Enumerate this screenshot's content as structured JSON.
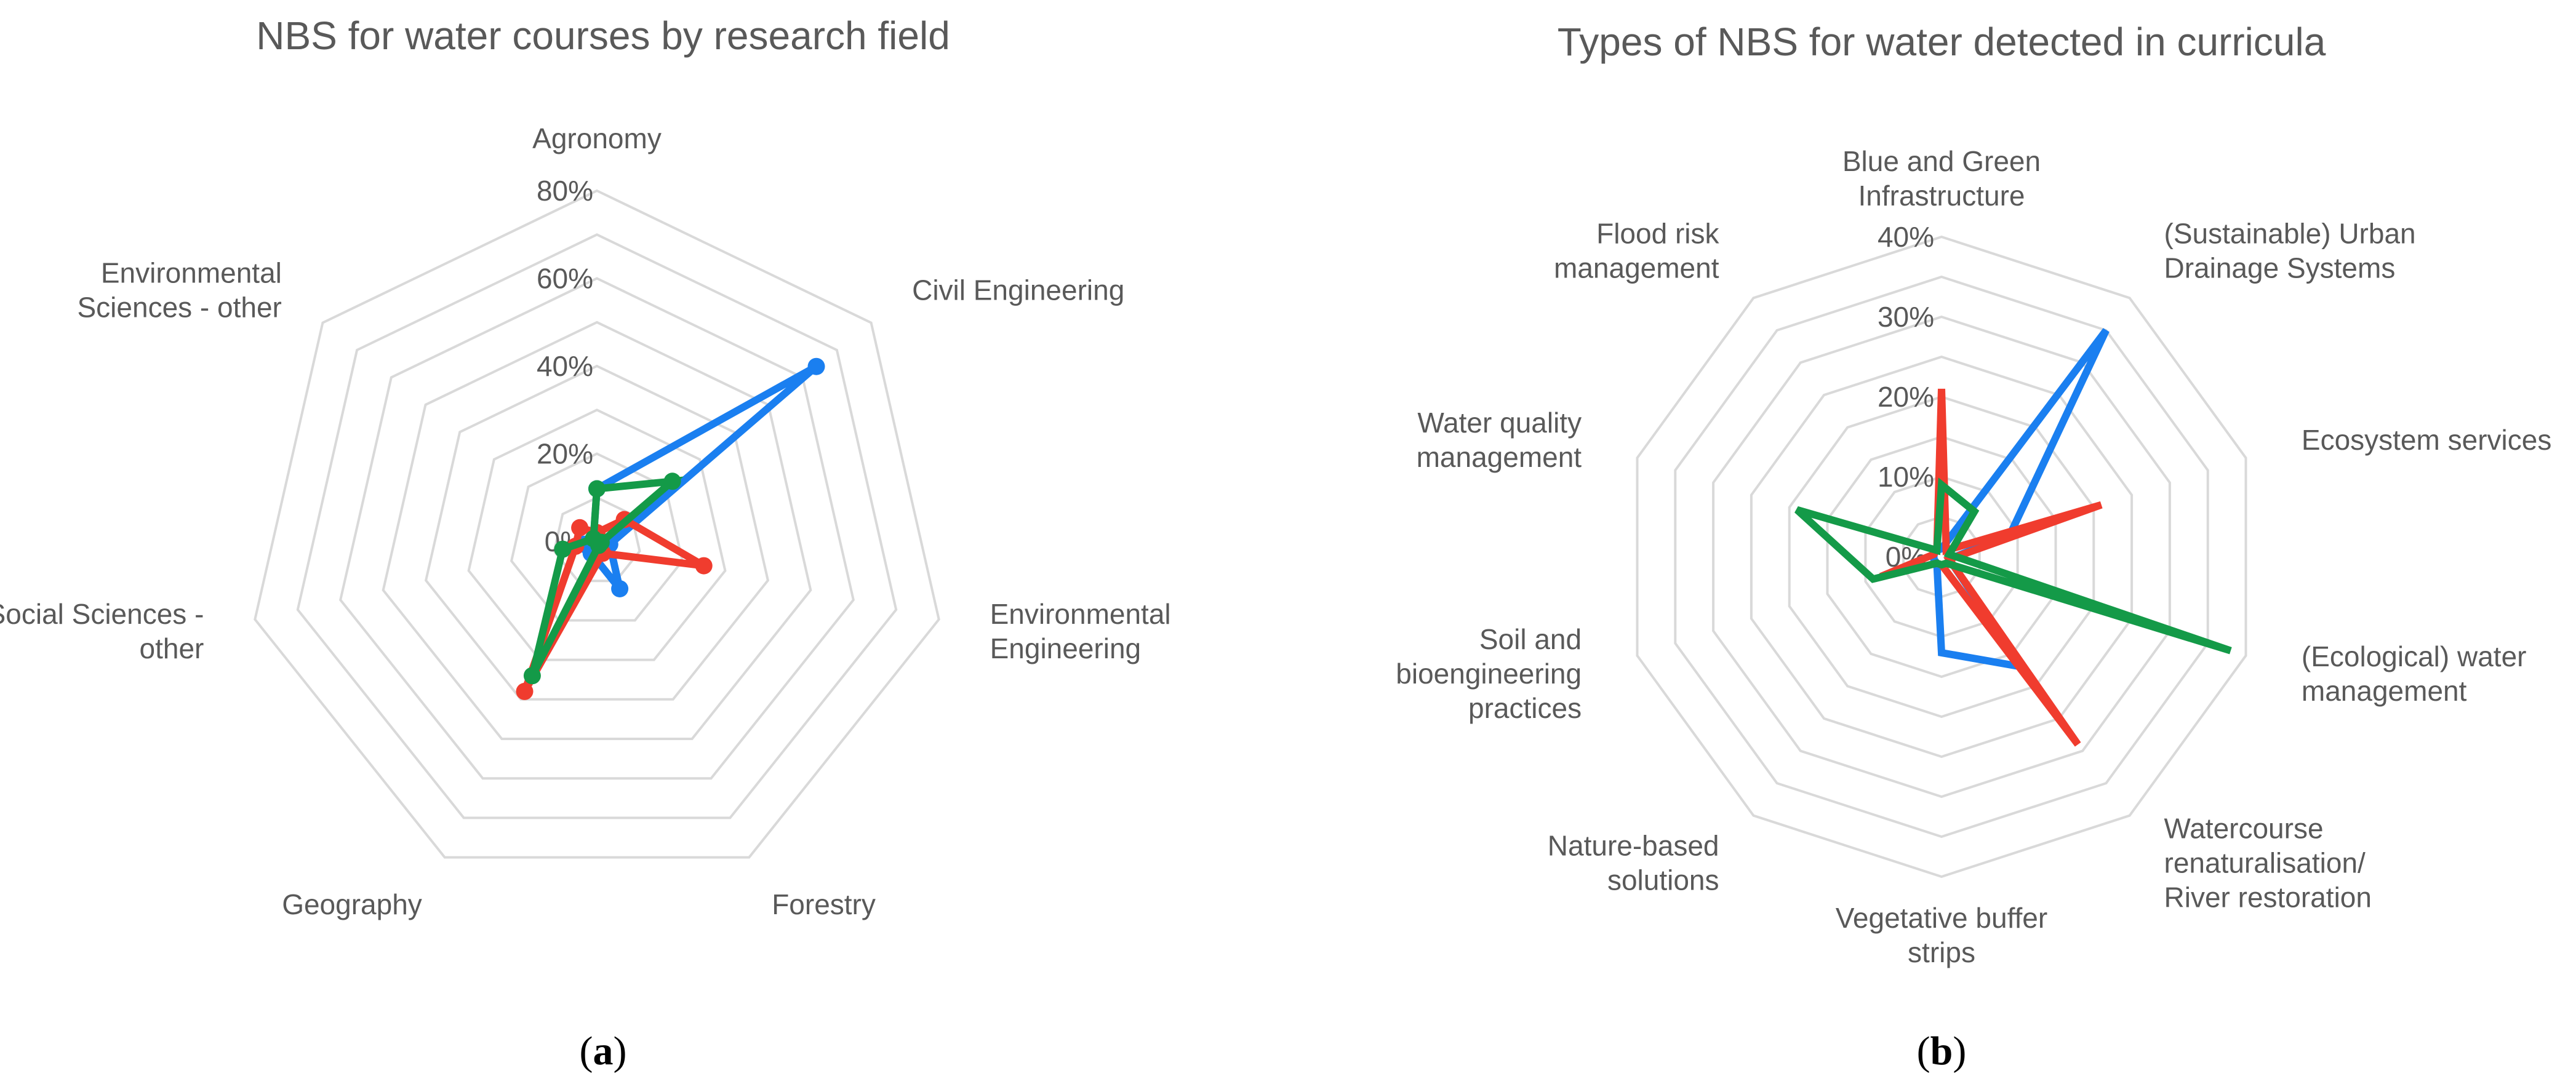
{
  "colors": {
    "blue": "#1a7ff0",
    "red": "#f03c2e",
    "green": "#149a48"
  },
  "chart_data": [
    {
      "type": "radar",
      "title": "NBS for water courses by research field",
      "panel_label": "a",
      "categories": [
        "Agronomy",
        "Civil Engineering",
        "Environmental Engineering",
        "Forestry",
        "Geography",
        "Social Sciences - other",
        "Environmental Sciences - other"
      ],
      "category_lines": [
        [
          "Agronomy"
        ],
        [
          "Civil Engineering"
        ],
        [
          "Environmental",
          "Engineering"
        ],
        [
          "Forestry"
        ],
        [
          "Geography"
        ],
        [
          "Social Sciences -",
          "other"
        ],
        [
          "Environmental",
          "Sciences - other"
        ]
      ],
      "ylim": [
        0,
        80
      ],
      "ticks": [
        0,
        20,
        40,
        60,
        80
      ],
      "tick_labels": [
        "0%",
        "20%",
        "40%",
        "60%",
        "80%"
      ],
      "grid_rings": 8,
      "markers": true,
      "series": [
        {
          "color": "blue",
          "values": [
            12,
            64,
            3,
            12,
            3,
            3,
            1
          ]
        },
        {
          "color": "red",
          "values": [
            2,
            8,
            25,
            3,
            38,
            5,
            5
          ]
        },
        {
          "color": "green",
          "values": [
            12,
            22,
            1,
            1,
            34,
            8,
            1
          ]
        }
      ]
    },
    {
      "type": "radar",
      "title": "Types of NBS for water detected in curricula",
      "panel_label": "b",
      "categories": [
        "Blue and Green Infrastructure",
        "(Sustainable) Urban Drainage Systems",
        "Ecosystem services",
        "(Ecological) water management",
        "Watercourse renaturalisation/ River restoration",
        "Vegetative buffer strips",
        "Nature-based solutions",
        "Soil and bioengineering practices",
        "Water quality management",
        "Flood risk management"
      ],
      "category_lines": [
        [
          "Blue and Green",
          "Infrastructure"
        ],
        [
          "(Sustainable) Urban",
          "Drainage Systems"
        ],
        [
          "Ecosystem services"
        ],
        [
          "(Ecological) water",
          "management"
        ],
        [
          "Watercourse",
          "renaturalisation/",
          "River restoration"
        ],
        [
          "Vegetative buffer",
          "strips"
        ],
        [
          "Nature-based",
          "solutions"
        ],
        [
          "Soil and",
          "bioengineering",
          "practices"
        ],
        [
          "Water quality",
          "management"
        ],
        [
          "Flood risk",
          "management"
        ]
      ],
      "ylim": [
        0,
        40
      ],
      "ticks": [
        0,
        10,
        20,
        30,
        40
      ],
      "tick_labels": [
        "0%",
        "10%",
        "20%",
        "30%",
        "40%"
      ],
      "grid_rings": 8,
      "markers": false,
      "series": [
        {
          "color": "blue",
          "values": [
            1,
            35,
            9,
            1,
            17,
            12,
            1,
            1,
            1,
            1
          ]
        },
        {
          "color": "red",
          "values": [
            21,
            1,
            21,
            1,
            29,
            1,
            1,
            8,
            1,
            1
          ]
        },
        {
          "color": "green",
          "values": [
            9,
            7,
            1,
            38,
            1,
            1,
            1,
            9,
            19,
            1
          ]
        }
      ]
    }
  ]
}
